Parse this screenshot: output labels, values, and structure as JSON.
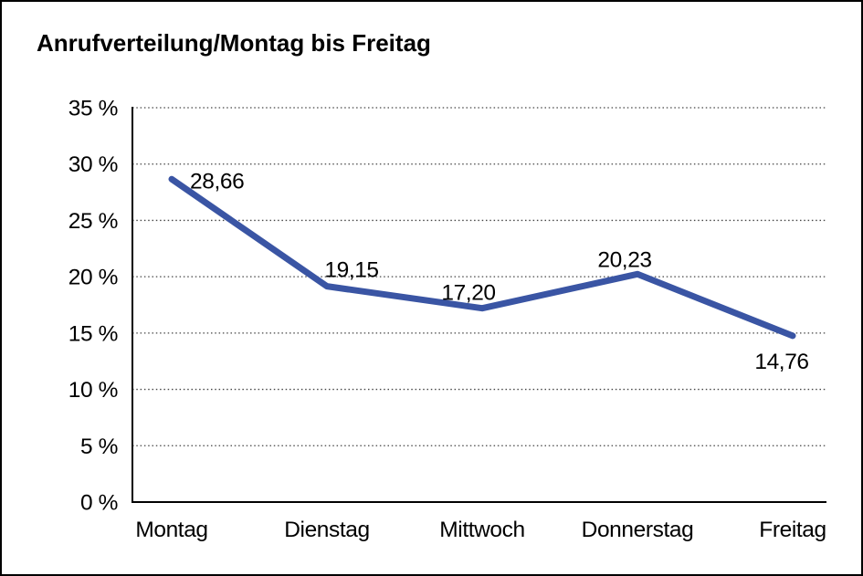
{
  "page": {
    "background": "#ffffff",
    "border_color": "#000000"
  },
  "chart_data": {
    "type": "line",
    "title": "Anrufverteilung/Montag bis Freitag",
    "categories": [
      "Montag",
      "Dienstag",
      "Mittwoch",
      "Donnerstag",
      "Freitag"
    ],
    "series": [
      {
        "name": "Anrufverteilung",
        "values": [
          28.66,
          19.15,
          17.2,
          20.23,
          14.76
        ]
      }
    ],
    "point_labels": [
      "28,66",
      "19,15",
      "17,20",
      "20,23",
      "14,76"
    ],
    "xlabel": "",
    "ylabel": "",
    "ylim": [
      0,
      35
    ],
    "y_tick_step": 5,
    "y_tick_labels": [
      "0 %",
      "5 %",
      "10 %",
      "15 %",
      "20 %",
      "25 %",
      "30 %",
      "35 %"
    ],
    "grid": "horizontal-dotted",
    "legend": "none",
    "line_color": "#3A55A4",
    "axis_color": "#000000",
    "gridline_color": "#444444",
    "text_color": "#000000"
  }
}
